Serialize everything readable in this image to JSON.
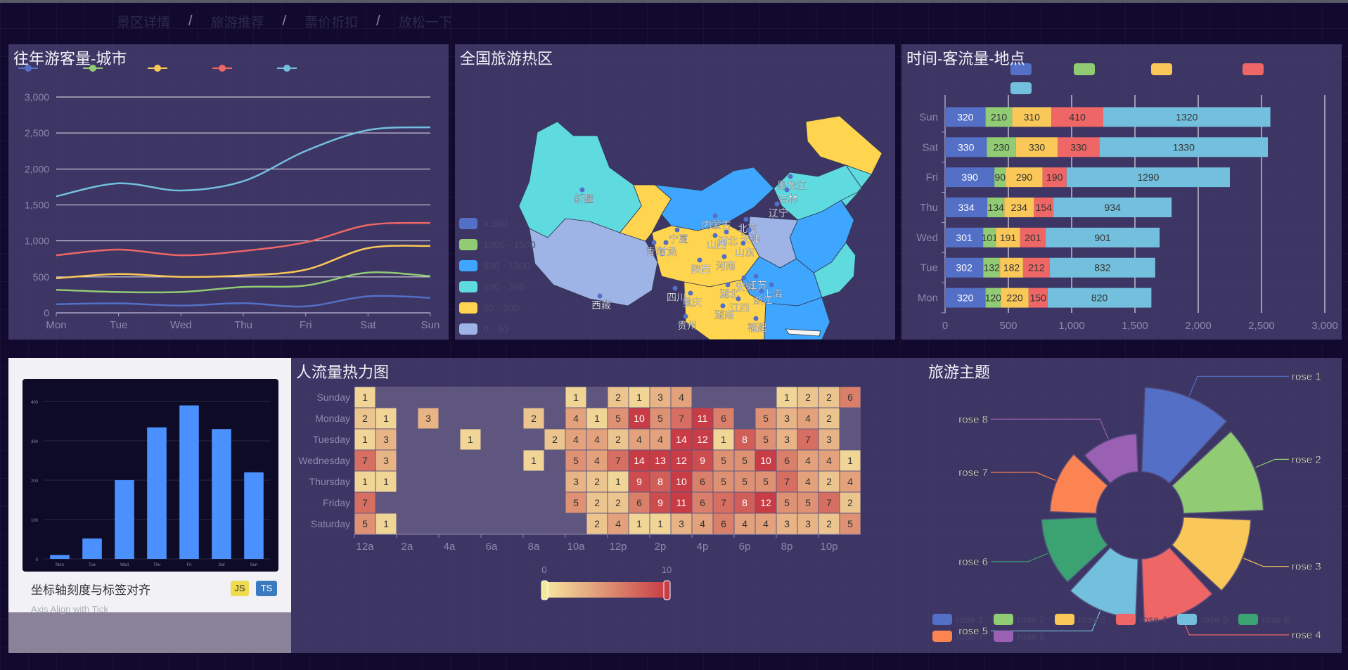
{
  "nav": {
    "items": [
      "景区详情",
      "旅游推荐",
      "票价折扣",
      "放松一下"
    ],
    "sep": "/"
  },
  "panel1": {
    "title": "往年游客量-城市",
    "chart_data": {
      "type": "line",
      "categories": [
        "Mon",
        "Tue",
        "Wed",
        "Thu",
        "Fri",
        "Sat",
        "Sun"
      ],
      "y_ticks": [
        "0",
        "500",
        "1,000",
        "1,500",
        "2,000",
        "2,500",
        "3,000"
      ],
      "ylim": [
        0,
        3000
      ],
      "grid": true,
      "legend_placement": "top",
      "series": [
        {
          "values": [
            120,
            132,
            101,
            134,
            90,
            230,
            210
          ],
          "color": "#5470c6"
        },
        {
          "values": [
            320,
            290,
            290,
            360,
            380,
            560,
            510
          ],
          "color": "#91cc75"
        },
        {
          "values": [
            480,
            540,
            500,
            520,
            600,
            900,
            930
          ],
          "color": "#fac858"
        },
        {
          "values": [
            800,
            880,
            800,
            860,
            980,
            1220,
            1250
          ],
          "color": "#ee6666"
        },
        {
          "values": [
            1620,
            1800,
            1700,
            1830,
            2250,
            2540,
            2580
          ],
          "color": "#73c0de"
        }
      ]
    }
  },
  "panel2": {
    "title": "全国旅游热区",
    "legend": {
      "items": [
        {
          "label": "> 500",
          "color": "#5470c6"
        },
        {
          "label": "1000 - 1500",
          "color": "#91cc75"
        },
        {
          "label": "500 - 1000",
          "color": "#3ea6ff"
        },
        {
          "label": "200 - 300",
          "color": "#5fdbdf"
        },
        {
          "label": "50 - 200",
          "color": "#ffd54f"
        },
        {
          "label": "0 - 50",
          "color": "#9fb4e6"
        }
      ]
    },
    "province_labels": [
      "新疆",
      "西藏",
      "内蒙古",
      "黑龙江",
      "吉林",
      "辽宁",
      "北京",
      "天津",
      "河北",
      "山西",
      "山东",
      "河南",
      "陕西",
      "宁夏",
      "青海",
      "甘肃",
      "四川",
      "重庆",
      "湖北",
      "安徽",
      "江苏",
      "上海",
      "浙江",
      "江西",
      "湖南",
      "贵州",
      "福建"
    ]
  },
  "panel3": {
    "title": "时间-客流量-地点",
    "chart_data": {
      "type": "bar",
      "orientation": "horizontal",
      "stacked": true,
      "categories": [
        "Mon",
        "Tue",
        "Wed",
        "Thu",
        "Fri",
        "Sat",
        "Sun"
      ],
      "x_ticks": [
        "0",
        "500",
        "1,000",
        "1,500",
        "2,000",
        "2,500",
        "3,000"
      ],
      "xlim": [
        0,
        3000
      ],
      "legend_placement": "top",
      "series": [
        {
          "values": [
            320,
            302,
            301,
            334,
            390,
            330,
            320
          ],
          "color": "#5470c6"
        },
        {
          "values": [
            120,
            132,
            101,
            134,
            90,
            230,
            210
          ],
          "color": "#91cc75"
        },
        {
          "values": [
            220,
            182,
            191,
            234,
            290,
            330,
            310
          ],
          "color": "#fac858"
        },
        {
          "values": [
            150,
            212,
            201,
            154,
            190,
            330,
            410
          ],
          "color": "#ee6666"
        },
        {
          "values": [
            820,
            832,
            901,
            934,
            1290,
            1330,
            1320
          ],
          "color": "#73c0de"
        }
      ]
    }
  },
  "panel4": {
    "card_title": "坐标轴刻度与标签对齐",
    "card_subtitle": "Axis Align with Tick",
    "badge_js": "JS",
    "badge_ts": "TS",
    "chart_data": {
      "type": "bar",
      "categories": [
        "Mon",
        "Tue",
        "Wed",
        "Thu",
        "Fri",
        "Sat",
        "Sun"
      ],
      "values": [
        10,
        52,
        200,
        334,
        390,
        330,
        220
      ],
      "y_ticks": [
        "0",
        "100",
        "200",
        "300",
        "400"
      ],
      "ylim": [
        0,
        400
      ],
      "color": "#4a90ff"
    }
  },
  "panel5": {
    "title": "人流量热力图",
    "visual_map": {
      "min": "0",
      "max": "10"
    },
    "chart_data": {
      "type": "heatmap",
      "y_categories": [
        "Saturday",
        "Friday",
        "Thursday",
        "Wednesday",
        "Tuesday",
        "Monday",
        "Sunday"
      ],
      "x_categories": [
        "12a",
        "1a",
        "2a",
        "3a",
        "4a",
        "5a",
        "6a",
        "7a",
        "8a",
        "9a",
        "10a",
        "11a",
        "12p",
        "1p",
        "2p",
        "3p",
        "4p",
        "5p",
        "6p",
        "7p",
        "8p",
        "9p",
        "10p",
        "11p"
      ],
      "x_tick_labels": [
        "12a",
        "2a",
        "4a",
        "6a",
        "8a",
        "10a",
        "12p",
        "2p",
        "4p",
        "6p",
        "8p",
        "10p"
      ],
      "rows": [
        [
          5,
          1,
          null,
          null,
          null,
          null,
          null,
          null,
          null,
          null,
          null,
          2,
          4,
          1,
          1,
          3,
          4,
          6,
          4,
          4,
          3,
          3,
          2,
          5
        ],
        [
          7,
          null,
          null,
          null,
          null,
          null,
          null,
          null,
          null,
          null,
          5,
          2,
          2,
          6,
          9,
          11,
          6,
          7,
          8,
          12,
          5,
          5,
          7,
          2
        ],
        [
          1,
          1,
          null,
          null,
          null,
          null,
          null,
          null,
          null,
          null,
          3,
          2,
          1,
          9,
          8,
          10,
          6,
          5,
          5,
          5,
          7,
          4,
          2,
          4
        ],
        [
          7,
          3,
          null,
          null,
          null,
          null,
          null,
          null,
          1,
          null,
          5,
          4,
          7,
          14,
          13,
          12,
          9,
          5,
          5,
          10,
          6,
          4,
          4,
          1
        ],
        [
          1,
          3,
          null,
          null,
          null,
          1,
          null,
          null,
          null,
          2,
          4,
          4,
          2,
          4,
          4,
          14,
          12,
          1,
          8,
          5,
          3,
          7,
          3,
          null
        ],
        [
          2,
          1,
          null,
          3,
          null,
          null,
          null,
          null,
          2,
          null,
          4,
          1,
          5,
          10,
          5,
          7,
          11,
          6,
          null,
          5,
          3,
          4,
          2,
          null
        ],
        [
          1,
          null,
          null,
          null,
          null,
          null,
          null,
          null,
          null,
          null,
          1,
          null,
          2,
          1,
          3,
          4,
          null,
          null,
          null,
          null,
          1,
          2,
          2,
          6
        ]
      ]
    }
  },
  "panel6": {
    "title": "旅游主题",
    "chart_data": {
      "type": "pie",
      "rose_type": "radius",
      "labels": [
        "rose 1",
        "rose 2",
        "rose 3",
        "rose 4",
        "rose 5",
        "rose 6",
        "rose 7",
        "rose 8"
      ],
      "values": [
        40,
        38,
        32,
        30,
        28,
        26,
        22,
        18
      ],
      "colors": [
        "#5470c6",
        "#91cc75",
        "#fac858",
        "#ee6666",
        "#73c0de",
        "#3ba272",
        "#fc8452",
        "#9a60b4"
      ],
      "legend_placement": "bottom"
    }
  }
}
